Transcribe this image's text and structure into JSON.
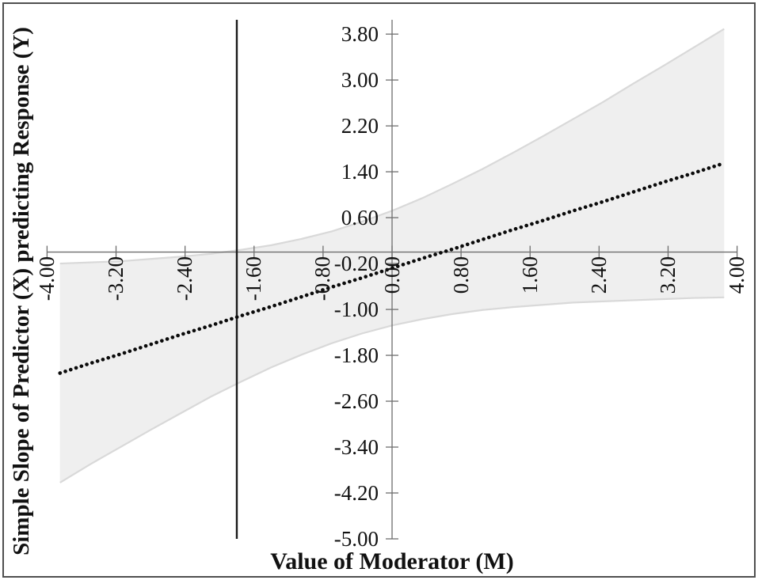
{
  "figure": {
    "x_axis_title": "Value of Moderator (M)",
    "y_axis_title": "Simple Slope of Predictor (X) predicting Response (Y)"
  },
  "chart_data": {
    "type": "line",
    "title": "",
    "xlabel": "Value of Moderator (M)",
    "ylabel": "Simple Slope of Predictor (X) predicting Response (Y)",
    "xlim": [
      -4.0,
      4.0
    ],
    "ylim": [
      -5.0,
      4.05
    ],
    "grid": false,
    "legend": "none",
    "x_tick_labels": [
      "-4.00",
      "-3.20",
      "-2.40",
      "-1.60",
      "-0.80",
      "0.00",
      "0.80",
      "1.60",
      "2.40",
      "3.20",
      "4.00"
    ],
    "x_tick_values": [
      -4.0,
      -3.2,
      -2.4,
      -1.6,
      -0.8,
      0.0,
      0.8,
      1.6,
      2.4,
      3.2,
      4.0
    ],
    "y_tick_labels": [
      "3.80",
      "3.00",
      "2.20",
      "1.40",
      "0.60",
      "-0.20",
      "-1.00",
      "-1.80",
      "-2.60",
      "-3.40",
      "-4.20",
      "-5.00"
    ],
    "y_tick_values": [
      3.8,
      3.0,
      2.2,
      1.4,
      0.6,
      -0.2,
      -1.0,
      -1.8,
      -2.6,
      -3.4,
      -4.2,
      -5.0
    ],
    "jn_boundary_x": -1.8,
    "x": [
      -3.85,
      -3.5,
      -3.15,
      -2.8,
      -2.45,
      -2.1,
      -1.75,
      -1.4,
      -1.05,
      -0.7,
      -0.35,
      0,
      0.35,
      0.7,
      1.05,
      1.4,
      1.75,
      2.1,
      2.45,
      2.8,
      3.15,
      3.5,
      3.85
    ],
    "slope": [
      -2.11,
      -1.94,
      -1.78,
      -1.61,
      -1.44,
      -1.28,
      -1.11,
      -0.95,
      -0.78,
      -0.61,
      -0.45,
      -0.28,
      -0.11,
      0.05,
      0.22,
      0.39,
      0.55,
      0.72,
      0.88,
      1.05,
      1.22,
      1.38,
      1.55
    ],
    "ci_upper": [
      -0.2,
      -0.18,
      -0.16,
      -0.12,
      -0.08,
      -0.03,
      0.04,
      0.12,
      0.23,
      0.36,
      0.53,
      0.72,
      0.94,
      1.19,
      1.45,
      1.73,
      2.02,
      2.32,
      2.62,
      2.94,
      3.25,
      3.57,
      3.89
    ],
    "ci_lower": [
      -4.02,
      -3.7,
      -3.4,
      -3.1,
      -2.81,
      -2.52,
      -2.26,
      -2.01,
      -1.79,
      -1.59,
      -1.42,
      -1.28,
      -1.17,
      -1.08,
      -1.01,
      -0.96,
      -0.92,
      -0.88,
      -0.86,
      -0.84,
      -0.82,
      -0.8,
      -0.79
    ],
    "series_notes": [
      {
        "name": "simple-slope",
        "style": "dotted-black"
      },
      {
        "name": "confidence-band",
        "style": "shaded-gray"
      }
    ],
    "colors": {
      "band_fill": "#efefef",
      "band_edge": "#d9d9d9",
      "axis": "#6e6e6e",
      "slope_line": "#0b0b0b",
      "jn_line": "#1a1a1a",
      "text": "#111111",
      "frame_border": "#4f4f4f"
    }
  }
}
